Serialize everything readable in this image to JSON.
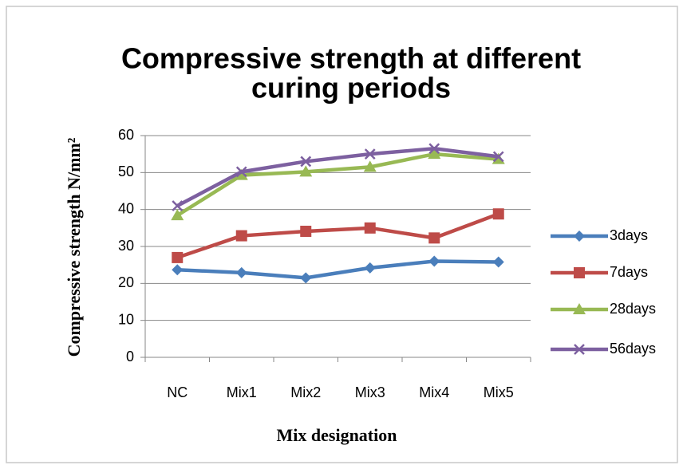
{
  "chart_data": {
    "type": "line",
    "title": [
      "Compressive strength at different",
      "curing periods"
    ],
    "x_label": "Mix designation",
    "y_label": "Compressive strength  N/mm²",
    "categories": [
      "NC",
      "Mix1",
      "Mix2",
      "Mix3",
      "Mix4",
      "Mix5"
    ],
    "series": [
      {
        "name": "3days",
        "color": "#4a7ebb",
        "marker": "diamond",
        "values": [
          23.7,
          22.9,
          21.5,
          24.2,
          26,
          25.8
        ]
      },
      {
        "name": "7days",
        "color": "#be4b48",
        "marker": "square",
        "values": [
          27,
          32.9,
          34.1,
          35,
          32.3,
          38.8
        ]
      },
      {
        "name": "28days",
        "color": "#98b954",
        "marker": "triangle",
        "values": [
          38.4,
          49.3,
          50.2,
          51.5,
          55,
          53.6
        ]
      },
      {
        "name": "56days",
        "color": "#7d60a0",
        "marker": "x",
        "values": [
          41,
          50.2,
          53,
          55,
          56.5,
          54.3
        ]
      }
    ],
    "ylim": [
      0,
      60
    ],
    "yticks": [
      0,
      10,
      20,
      30,
      40,
      50,
      60
    ],
    "grid": true,
    "legend": "right"
  }
}
